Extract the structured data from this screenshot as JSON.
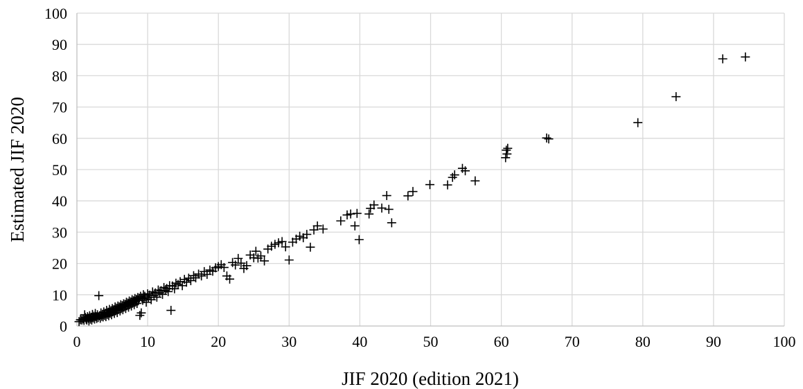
{
  "chart_data": {
    "type": "scatter",
    "title": "",
    "xlabel": "JIF 2020 (edition 2021)",
    "ylabel": "Estimated JIF 2020",
    "xlim": [
      0,
      100
    ],
    "ylim": [
      0,
      100
    ],
    "x_ticks": [
      "0",
      "10",
      "20",
      "30",
      "40",
      "50",
      "60",
      "70",
      "80",
      "90",
      "100"
    ],
    "y_ticks": [
      "0",
      "10",
      "20",
      "30",
      "40",
      "50",
      "60",
      "70",
      "80",
      "90",
      "100"
    ],
    "grid": true,
    "legend": "none",
    "marker": "plus",
    "marker_color": "#000000",
    "series": [
      {
        "points": [
          [
            0.3,
            1.4
          ],
          [
            0.5,
            2.0
          ],
          [
            0.7,
            1.9
          ],
          [
            0.9,
            2.3
          ],
          [
            1.0,
            1.8
          ],
          [
            1.1,
            3.6
          ],
          [
            1.2,
            2.7
          ],
          [
            1.3,
            2.2
          ],
          [
            1.4,
            1.9
          ],
          [
            1.5,
            3.0
          ],
          [
            1.6,
            2.5
          ],
          [
            1.7,
            1.6
          ],
          [
            1.8,
            3.3
          ],
          [
            1.9,
            2.2
          ],
          [
            2.0,
            2.8
          ],
          [
            2.1,
            1.9
          ],
          [
            2.2,
            3.7
          ],
          [
            2.3,
            2.6
          ],
          [
            2.4,
            3.1
          ],
          [
            2.5,
            2.2
          ],
          [
            2.6,
            4.0
          ],
          [
            2.7,
            3.0
          ],
          [
            2.8,
            2.4
          ],
          [
            2.9,
            3.6
          ],
          [
            3.0,
            2.7
          ],
          [
            3.1,
            9.7
          ],
          [
            3.2,
            3.3
          ],
          [
            3.3,
            2.5
          ],
          [
            3.4,
            4.2
          ],
          [
            3.5,
            3.1
          ],
          [
            3.6,
            3.7
          ],
          [
            3.7,
            2.9
          ],
          [
            3.8,
            4.5
          ],
          [
            3.9,
            3.4
          ],
          [
            4.0,
            4.0
          ],
          [
            4.1,
            3.0
          ],
          [
            4.2,
            5.0
          ],
          [
            4.3,
            3.7
          ],
          [
            4.4,
            4.4
          ],
          [
            4.5,
            3.3
          ],
          [
            4.6,
            5.3
          ],
          [
            4.7,
            4.1
          ],
          [
            4.8,
            4.8
          ],
          [
            4.9,
            3.6
          ],
          [
            5.0,
            5.6
          ],
          [
            5.1,
            4.6
          ],
          [
            5.2,
            5.2
          ],
          [
            5.3,
            4.0
          ],
          [
            5.4,
            6.1
          ],
          [
            5.5,
            5.0
          ],
          [
            5.6,
            5.7
          ],
          [
            5.7,
            4.3
          ],
          [
            5.8,
            6.4
          ],
          [
            5.9,
            5.4
          ],
          [
            6.0,
            6.1
          ],
          [
            6.1,
            4.8
          ],
          [
            6.2,
            6.8
          ],
          [
            6.3,
            5.8
          ],
          [
            6.4,
            6.5
          ],
          [
            6.5,
            5.2
          ],
          [
            6.6,
            7.1
          ],
          [
            6.7,
            6.2
          ],
          [
            6.8,
            6.9
          ],
          [
            6.9,
            5.6
          ],
          [
            7.0,
            7.6
          ],
          [
            7.1,
            6.6
          ],
          [
            7.2,
            7.3
          ],
          [
            7.3,
            6.0
          ],
          [
            7.4,
            8.0
          ],
          [
            7.5,
            7.0
          ],
          [
            7.6,
            7.7
          ],
          [
            7.7,
            6.4
          ],
          [
            7.8,
            8.4
          ],
          [
            7.9,
            7.4
          ],
          [
            8.0,
            8.1
          ],
          [
            8.1,
            6.8
          ],
          [
            8.2,
            8.8
          ],
          [
            8.3,
            7.8
          ],
          [
            8.4,
            8.5
          ],
          [
            8.5,
            7.2
          ],
          [
            8.6,
            9.1
          ],
          [
            8.7,
            8.2
          ],
          [
            8.8,
            8.9
          ],
          [
            8.9,
            3.4
          ],
          [
            9.0,
            9.5
          ],
          [
            9.1,
            4.2
          ],
          [
            9.2,
            9.0
          ],
          [
            9.3,
            8.2
          ],
          [
            9.4,
            10.0
          ],
          [
            9.5,
            8.7
          ],
          [
            9.6,
            9.5
          ],
          [
            9.8,
            7.6
          ],
          [
            10.0,
            10.3
          ],
          [
            10.1,
            9.1
          ],
          [
            10.3,
            9.9
          ],
          [
            10.5,
            8.4
          ],
          [
            10.7,
            10.9
          ],
          [
            10.9,
            9.8
          ],
          [
            11.1,
            10.6
          ],
          [
            11.3,
            9.2
          ],
          [
            11.5,
            11.5
          ],
          [
            11.7,
            10.6
          ],
          [
            11.9,
            11.3
          ],
          [
            12.1,
            10.1
          ],
          [
            12.3,
            12.3
          ],
          [
            12.5,
            11.4
          ],
          [
            12.7,
            12.0
          ],
          [
            12.9,
            11.0
          ],
          [
            13.1,
            12.9
          ],
          [
            13.3,
            5.0
          ],
          [
            13.5,
            12.8
          ],
          [
            13.8,
            11.9
          ],
          [
            14.0,
            13.7
          ],
          [
            14.3,
            13.3
          ],
          [
            14.6,
            14.2
          ],
          [
            14.9,
            12.9
          ],
          [
            15.2,
            14.9
          ],
          [
            15.5,
            14.0
          ],
          [
            15.8,
            15.3
          ],
          [
            16.1,
            14.5
          ],
          [
            16.5,
            16.1
          ],
          [
            16.8,
            15.4
          ],
          [
            17.2,
            16.6
          ],
          [
            17.6,
            16.0
          ],
          [
            18.0,
            17.4
          ],
          [
            18.4,
            16.5
          ],
          [
            18.8,
            17.9
          ],
          [
            19.2,
            17.5
          ],
          [
            19.6,
            18.6
          ],
          [
            20.0,
            19.0
          ],
          [
            20.4,
            19.6
          ],
          [
            20.8,
            18.7
          ],
          [
            21.2,
            16.0
          ],
          [
            21.6,
            15.0
          ],
          [
            22.0,
            20.3
          ],
          [
            22.4,
            19.5
          ],
          [
            22.8,
            21.6
          ],
          [
            23.2,
            20.1
          ],
          [
            23.6,
            18.4
          ],
          [
            24.0,
            19.3
          ],
          [
            24.5,
            22.7
          ],
          [
            25.0,
            21.8
          ],
          [
            25.3,
            23.9
          ],
          [
            25.6,
            21.7
          ],
          [
            26.0,
            22.4
          ],
          [
            26.5,
            20.8
          ],
          [
            27.0,
            24.6
          ],
          [
            27.5,
            25.5
          ],
          [
            28.0,
            26.1
          ],
          [
            28.5,
            26.6
          ],
          [
            29.0,
            27.0
          ],
          [
            29.5,
            25.3
          ],
          [
            30.0,
            21.1
          ],
          [
            30.5,
            26.8
          ],
          [
            31.0,
            27.8
          ],
          [
            31.5,
            28.7
          ],
          [
            32.0,
            28.2
          ],
          [
            32.5,
            29.3
          ],
          [
            33.0,
            25.2
          ],
          [
            33.5,
            30.7
          ],
          [
            34.0,
            32.0
          ],
          [
            34.8,
            31.0
          ],
          [
            37.3,
            33.6
          ],
          [
            38.2,
            35.5
          ],
          [
            38.7,
            35.8
          ],
          [
            39.3,
            32.0
          ],
          [
            39.6,
            36.0
          ],
          [
            39.9,
            27.6
          ],
          [
            41.3,
            35.8
          ],
          [
            41.5,
            37.6
          ],
          [
            42.0,
            38.7
          ],
          [
            43.1,
            37.7
          ],
          [
            43.8,
            41.7
          ],
          [
            44.1,
            37.3
          ],
          [
            44.5,
            33.0
          ],
          [
            46.8,
            41.6
          ],
          [
            47.5,
            43.0
          ],
          [
            49.9,
            45.2
          ],
          [
            52.4,
            45.1
          ],
          [
            53.1,
            47.5
          ],
          [
            53.4,
            48.3
          ],
          [
            54.5,
            50.4
          ],
          [
            54.9,
            49.6
          ],
          [
            56.3,
            46.4
          ],
          [
            60.6,
            53.8
          ],
          [
            60.7,
            56.2
          ],
          [
            60.8,
            55.0
          ],
          [
            60.9,
            56.8
          ],
          [
            66.4,
            60.1
          ],
          [
            66.7,
            59.8
          ],
          [
            79.3,
            65.0
          ],
          [
            84.7,
            73.3
          ],
          [
            91.3,
            85.4
          ],
          [
            94.5,
            86.0
          ]
        ]
      }
    ]
  }
}
